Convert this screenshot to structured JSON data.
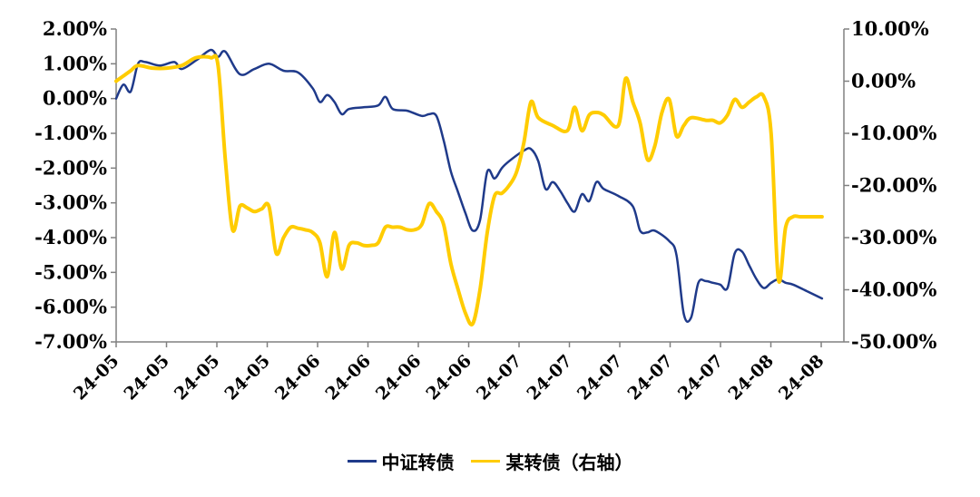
{
  "chart_data": {
    "type": "line",
    "y_left": {
      "lim": [
        -7,
        2
      ],
      "ticks": [
        "2.00%",
        "1.00%",
        "0.00%",
        "-1.00%",
        "-2.00%",
        "-3.00%",
        "-4.00%",
        "-5.00%",
        "-6.00%",
        "-7.00%"
      ]
    },
    "y_right": {
      "lim": [
        -50,
        10
      ],
      "ticks": [
        "10.00%",
        "0.00%",
        "-10.00%",
        "-20.00%",
        "-30.00%",
        "-40.00%",
        "-50.00%"
      ]
    },
    "x_ticks": [
      "24-05",
      "24-05",
      "24-05",
      "24-05",
      "24-06",
      "24-06",
      "24-06",
      "24-06",
      "24-07",
      "24-07",
      "24-07",
      "24-07",
      "24-07",
      "24-08",
      "24-08"
    ],
    "x_range": [
      0,
      100
    ],
    "series": [
      {
        "name": "中证转债",
        "axis": "left",
        "color": "#1f3a8a",
        "points": [
          [
            0,
            0.0
          ],
          [
            1,
            0.4
          ],
          [
            2,
            0.2
          ],
          [
            3,
            1.0
          ],
          [
            4,
            1.05
          ],
          [
            6,
            0.95
          ],
          [
            8,
            1.05
          ],
          [
            9,
            0.85
          ],
          [
            11,
            1.1
          ],
          [
            13,
            1.4
          ],
          [
            14,
            1.2
          ],
          [
            15,
            1.35
          ],
          [
            17,
            0.7
          ],
          [
            19,
            0.85
          ],
          [
            21,
            1.0
          ],
          [
            23,
            0.8
          ],
          [
            25,
            0.75
          ],
          [
            27,
            0.3
          ],
          [
            28,
            -0.1
          ],
          [
            29,
            0.1
          ],
          [
            30,
            -0.1
          ],
          [
            31,
            -0.45
          ],
          [
            32,
            -0.3
          ],
          [
            34,
            -0.25
          ],
          [
            36,
            -0.2
          ],
          [
            37,
            0.05
          ],
          [
            38,
            -0.3
          ],
          [
            40,
            -0.35
          ],
          [
            42,
            -0.5
          ],
          [
            43,
            -0.45
          ],
          [
            44,
            -0.5
          ],
          [
            45,
            -1.2
          ],
          [
            46,
            -2.1
          ],
          [
            47,
            -2.7
          ],
          [
            48,
            -3.3
          ],
          [
            49,
            -3.8
          ],
          [
            50,
            -3.5
          ],
          [
            51,
            -2.1
          ],
          [
            52,
            -2.3
          ],
          [
            53,
            -2.0
          ],
          [
            54,
            -1.8
          ],
          [
            56,
            -1.5
          ],
          [
            57,
            -1.45
          ],
          [
            58,
            -1.8
          ],
          [
            59,
            -2.6
          ],
          [
            60,
            -2.4
          ],
          [
            61,
            -2.65
          ],
          [
            62,
            -3.0
          ],
          [
            63,
            -3.25
          ],
          [
            64,
            -2.75
          ],
          [
            65,
            -2.95
          ],
          [
            66,
            -2.4
          ],
          [
            67,
            -2.6
          ],
          [
            69,
            -2.8
          ],
          [
            71,
            -3.1
          ],
          [
            72,
            -3.8
          ],
          [
            73,
            -3.85
          ],
          [
            74,
            -3.8
          ],
          [
            76,
            -4.1
          ],
          [
            77,
            -4.5
          ],
          [
            78,
            -6.2
          ],
          [
            79,
            -6.3
          ],
          [
            80,
            -5.3
          ],
          [
            81,
            -5.25
          ],
          [
            82,
            -5.3
          ],
          [
            83,
            -5.35
          ],
          [
            84,
            -5.45
          ],
          [
            85,
            -4.45
          ],
          [
            86,
            -4.4
          ],
          [
            87,
            -4.8
          ],
          [
            88,
            -5.2
          ],
          [
            89,
            -5.45
          ],
          [
            90,
            -5.3
          ],
          [
            91,
            -5.2
          ],
          [
            92,
            -5.3
          ],
          [
            93,
            -5.35
          ],
          [
            95,
            -5.55
          ],
          [
            97,
            -5.75
          ]
        ]
      },
      {
        "name": "某转债（右轴）",
        "axis": "right",
        "color": "#ffcc00",
        "points": [
          [
            0,
            0.0
          ],
          [
            1,
            1.0
          ],
          [
            2,
            2.0
          ],
          [
            3,
            3.0
          ],
          [
            5,
            2.5
          ],
          [
            7,
            2.5
          ],
          [
            9,
            3.0
          ],
          [
            11,
            4.5
          ],
          [
            13,
            4.5
          ],
          [
            14,
            3.0
          ],
          [
            15,
            -15.0
          ],
          [
            16,
            -28.5
          ],
          [
            17,
            -24.0
          ],
          [
            18,
            -24.3
          ],
          [
            19,
            -25.0
          ],
          [
            20,
            -24.5
          ],
          [
            21,
            -24.0
          ],
          [
            22,
            -33.0
          ],
          [
            23,
            -30.0
          ],
          [
            24,
            -28.0
          ],
          [
            25,
            -28.2
          ],
          [
            26,
            -28.5
          ],
          [
            27,
            -29.0
          ],
          [
            28,
            -31.0
          ],
          [
            29,
            -37.5
          ],
          [
            30,
            -29.0
          ],
          [
            31,
            -36.0
          ],
          [
            32,
            -31.5
          ],
          [
            33,
            -31.0
          ],
          [
            34,
            -31.5
          ],
          [
            35,
            -31.5
          ],
          [
            36,
            -31.0
          ],
          [
            37,
            -28.0
          ],
          [
            38,
            -28.0
          ],
          [
            39,
            -28.0
          ],
          [
            40,
            -28.5
          ],
          [
            41,
            -28.5
          ],
          [
            42,
            -27.5
          ],
          [
            43,
            -23.5
          ],
          [
            44,
            -25.0
          ],
          [
            45,
            -27.5
          ],
          [
            46,
            -35.0
          ],
          [
            47,
            -40.0
          ],
          [
            48,
            -44.5
          ],
          [
            49,
            -46.5
          ],
          [
            50,
            -40.0
          ],
          [
            51,
            -29.0
          ],
          [
            52,
            -22.0
          ],
          [
            53,
            -21.5
          ],
          [
            54,
            -20.0
          ],
          [
            55,
            -17.5
          ],
          [
            56,
            -12.0
          ],
          [
            57,
            -4.0
          ],
          [
            58,
            -7.0
          ],
          [
            60,
            -8.5
          ],
          [
            62,
            -9.5
          ],
          [
            63,
            -5.0
          ],
          [
            64,
            -9.5
          ],
          [
            65,
            -6.5
          ],
          [
            66,
            -6.0
          ],
          [
            67,
            -6.5
          ],
          [
            69,
            -8.5
          ],
          [
            70,
            0.5
          ],
          [
            71,
            -4.0
          ],
          [
            72,
            -8.0
          ],
          [
            73,
            -15.0
          ],
          [
            74,
            -12.5
          ],
          [
            75,
            -6.0
          ],
          [
            76,
            -3.5
          ],
          [
            77,
            -10.5
          ],
          [
            78,
            -8.5
          ],
          [
            79,
            -7.0
          ],
          [
            81,
            -7.5
          ],
          [
            82,
            -7.5
          ],
          [
            83,
            -8.0
          ],
          [
            84,
            -6.5
          ],
          [
            85,
            -3.5
          ],
          [
            86,
            -5.0
          ],
          [
            87,
            -4.0
          ],
          [
            88,
            -3.0
          ],
          [
            89,
            -3.0
          ],
          [
            90,
            -10.0
          ],
          [
            91,
            -38.0
          ],
          [
            92,
            -28.0
          ],
          [
            93,
            -26.0
          ],
          [
            94,
            -26.0
          ],
          [
            96,
            -26.0
          ],
          [
            97,
            -26.0
          ]
        ]
      }
    ]
  },
  "legend": {
    "items": [
      {
        "label": "中证转债",
        "color": "#1f3a8a"
      },
      {
        "label": "某转债（右轴）",
        "color": "#ffcc00"
      }
    ]
  }
}
